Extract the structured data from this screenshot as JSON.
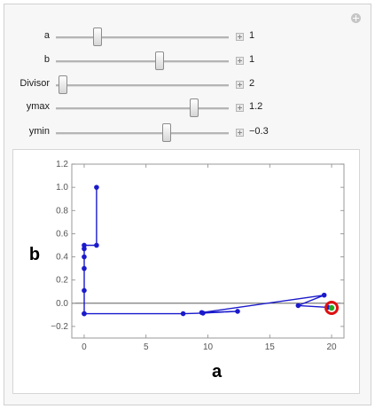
{
  "controls": [
    {
      "label": "a",
      "value": "1",
      "thumb_fraction": 0.24
    },
    {
      "label": "b",
      "value": "1",
      "thumb_fraction": 0.6
    },
    {
      "label": "Divisor",
      "value": "2",
      "thumb_fraction": 0.04
    },
    {
      "label": "ymax",
      "value": "1.2",
      "thumb_fraction": 0.8
    },
    {
      "label": "ymin",
      "value": "−0.3",
      "thumb_fraction": 0.64
    }
  ],
  "icons": {
    "corner": "plus-circle-icon",
    "increment": "plus-box-icon"
  },
  "colors": {
    "line": "#1a1acc",
    "highlight_ring": "#dd1111",
    "highlight_center": "#22aa22"
  },
  "chart_data": {
    "type": "line",
    "xlabel": "a",
    "ylabel": "b",
    "xlim": [
      -1,
      21
    ],
    "ylim": [
      -0.3,
      1.2
    ],
    "xticks": [
      "0",
      "5",
      "10",
      "15",
      "20"
    ],
    "xtick_values": [
      0,
      5,
      10,
      15,
      20
    ],
    "yticks": [
      "1.2",
      "1.0",
      "0.8",
      "0.6",
      "0.4",
      "0.2",
      "0.0",
      "−0.2"
    ],
    "ytick_values": [
      1.2,
      1.0,
      0.8,
      0.6,
      0.4,
      0.2,
      0.0,
      -0.2
    ],
    "series": [
      {
        "x": [
          1,
          1,
          0,
          0,
          0,
          0,
          0,
          0,
          0,
          8,
          9.6,
          12.4,
          9.5,
          19.4,
          17.3,
          19.7,
          20
        ],
        "y": [
          1.0,
          0.5,
          0.5,
          0.47,
          0.4,
          0.3,
          0.11,
          -0.09,
          -0.09,
          -0.09,
          -0.085,
          -0.07,
          -0.08,
          0.07,
          -0.02,
          -0.035,
          -0.04
        ]
      }
    ],
    "highlight_point": {
      "x": 20,
      "y": -0.04
    }
  }
}
